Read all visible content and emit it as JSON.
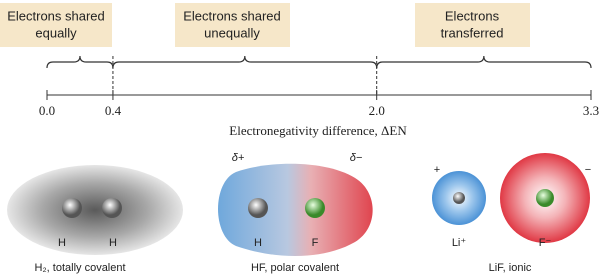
{
  "regions": [
    {
      "lines": [
        "Electrons shared",
        "equally"
      ]
    },
    {
      "lines": [
        "Electrons shared",
        "unequally"
      ]
    },
    {
      "lines": [
        "Electrons",
        "transferred"
      ]
    }
  ],
  "axis": {
    "label": "Electronegativity difference, ΔEN",
    "ticks": [
      {
        "value": 0,
        "label": "0.0"
      },
      {
        "value": 0.4,
        "label": "0.4"
      },
      {
        "value": 2,
        "label": "2.0"
      },
      {
        "value": 3.3,
        "label": "3.3"
      }
    ]
  },
  "molecules": [
    {
      "atoms": [
        "H",
        "H"
      ],
      "caption": "H₂, totally covalent"
    },
    {
      "charges": [
        "δ+",
        "δ−"
      ],
      "atoms": [
        "H",
        "F"
      ],
      "caption": "HF, polar covalent"
    },
    {
      "charges": [
        "+",
        "−"
      ],
      "atoms": [
        "Li⁺",
        "F⁻"
      ],
      "caption": "LiF, ionic"
    }
  ]
}
